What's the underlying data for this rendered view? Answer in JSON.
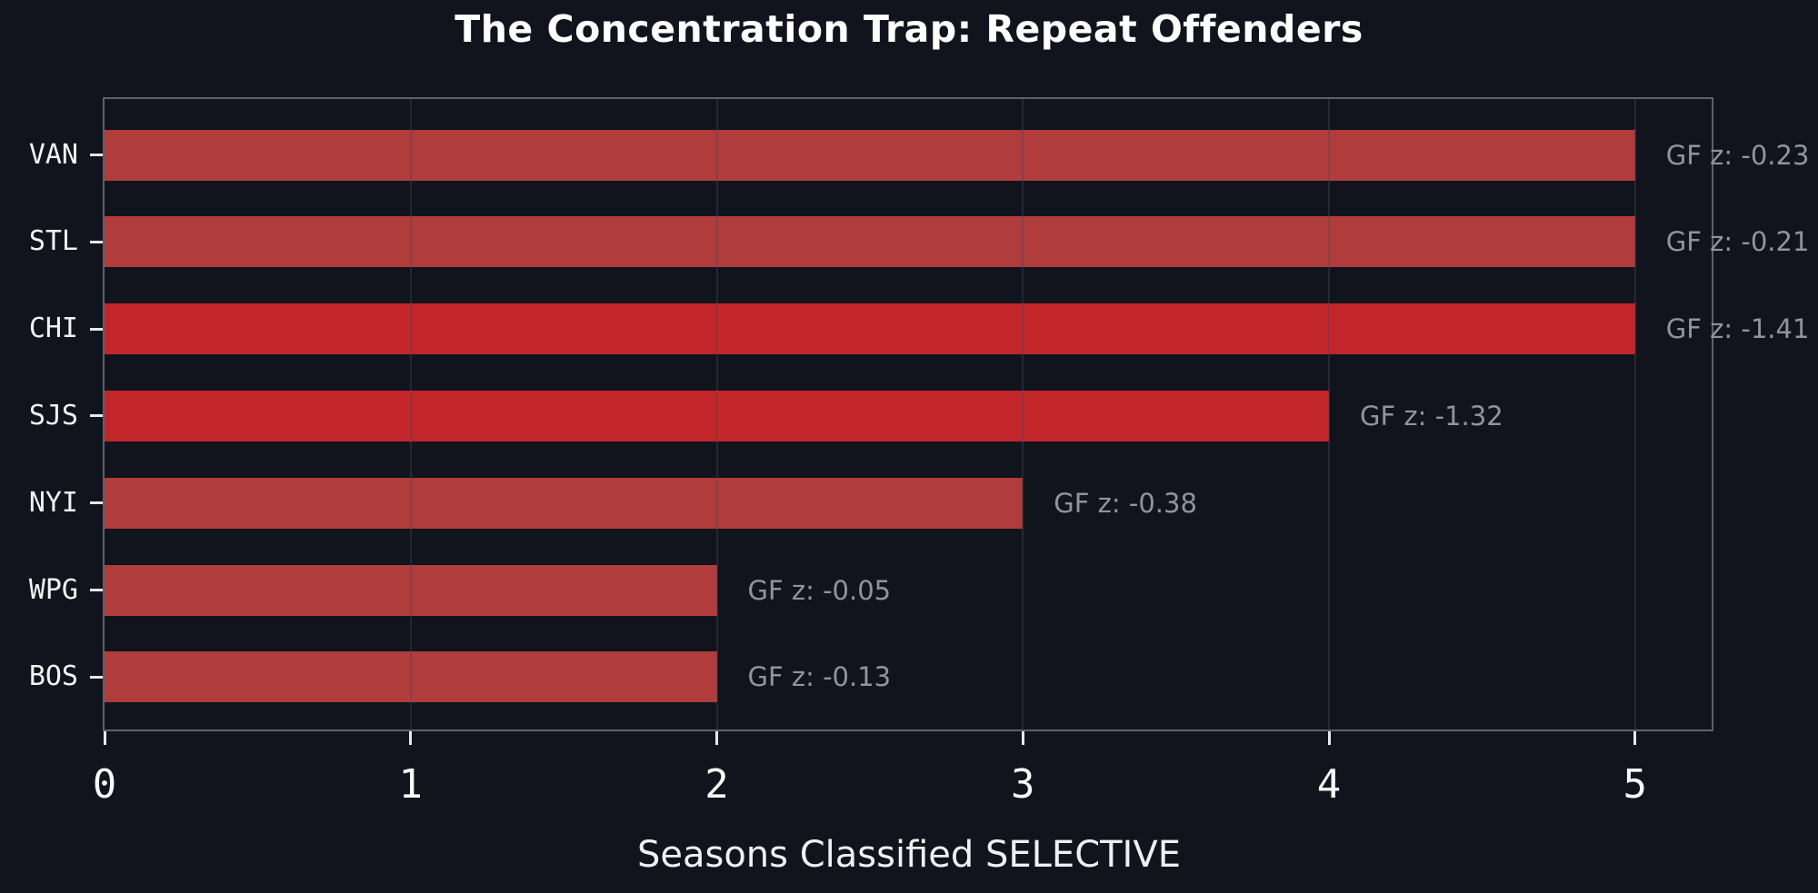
{
  "page": {
    "background_color": "#12141d"
  },
  "chart_data": {
    "type": "bar",
    "orientation": "horizontal",
    "title": "The Concentration Trap: Repeat Offenders",
    "xlabel": "Seasons Classified SELECTIVE",
    "ylabel": "",
    "categories": [
      "VAN",
      "STL",
      "CHI",
      "SJS",
      "NYI",
      "WPG",
      "BOS"
    ],
    "values": [
      5,
      5,
      5,
      4,
      3,
      2,
      2
    ],
    "bar_labels": [
      "GF z: -0.23",
      "GF z: -0.21",
      "GF z: -1.41",
      "GF z: -1.32",
      "GF z: -0.38",
      "GF z: -0.05",
      "GF z: -0.13"
    ],
    "gf_z_values": [
      -0.23,
      -0.21,
      -1.41,
      -1.32,
      -0.38,
      -0.05,
      -0.13
    ],
    "highlighted": [
      false,
      false,
      true,
      true,
      false,
      false,
      false
    ],
    "xlim": [
      0,
      5.25
    ],
    "xticks": [
      "0",
      "1",
      "2",
      "3",
      "4",
      "5"
    ],
    "grid": "vertical gridlines at integer x ticks, drawn over bars",
    "legend": "none",
    "colors": {
      "background": "#12141d",
      "bar_muted": "#b03c3c",
      "bar_highlight": "#c2262a",
      "annotation_text": "#8e94a2",
      "axis_text": "#f2f2f4",
      "spine": "#5c6070"
    }
  }
}
